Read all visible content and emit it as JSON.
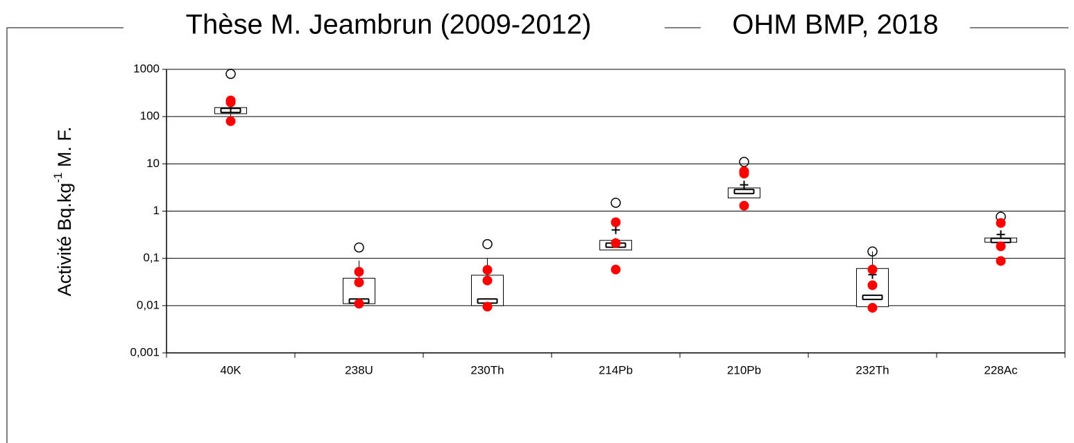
{
  "chart_data": {
    "type": "box",
    "legend": [
      {
        "name": "Thèse M. Jeambrun (2009-2012)",
        "color": "#000000"
      },
      {
        "name": "OHM BMP, 2018",
        "color": "#ff0000"
      }
    ],
    "y_label": [
      "Activité Bq.kg",
      "-1",
      " M. F."
    ],
    "log_y": true,
    "grid": true,
    "ylim": [
      0.001,
      1000
    ],
    "yticks": [
      {
        "value": 0.001,
        "label": "0,001"
      },
      {
        "value": 0.01,
        "label": "0,01"
      },
      {
        "value": 0.1,
        "label": "0,1"
      },
      1,
      10,
      100,
      1000
    ],
    "categories": [
      "40K",
      "238U",
      "230Th",
      "214Pb",
      "210Pb",
      "232Th",
      "228Ac"
    ],
    "boxes": [
      {
        "whisker_low": 100,
        "q1": 115,
        "median": 135,
        "q3": 155,
        "whisker_high": 160,
        "mean": 150,
        "outliers": [
          800
        ]
      },
      {
        "whisker_low": 0.011,
        "q1": 0.011,
        "median": 0.0125,
        "q3": 0.038,
        "whisker_high": 0.09,
        "mean": null,
        "outliers": [
          0.17
        ]
      },
      {
        "whisker_low": 0.01,
        "q1": 0.01,
        "median": 0.0125,
        "q3": 0.044,
        "whisker_high": 0.1,
        "mean": null,
        "outliers": [
          0.2
        ]
      },
      {
        "whisker_low": 0.15,
        "q1": 0.15,
        "median": 0.19,
        "q3": 0.24,
        "whisker_high": 0.27,
        "mean": 0.4,
        "outliers": [
          1.5
        ]
      },
      {
        "whisker_low": 1.9,
        "q1": 1.9,
        "median": 2.6,
        "q3": 3.1,
        "whisker_high": 3.5,
        "mean": 3.6,
        "outliers": [
          11
        ]
      },
      {
        "whisker_low": 0.0095,
        "q1": 0.0095,
        "median": 0.015,
        "q3": 0.061,
        "whisker_high": 0.14,
        "mean": 0.045,
        "outliers": [
          0.14
        ]
      },
      {
        "whisker_low": 0.22,
        "q1": 0.22,
        "median": 0.24,
        "q3": 0.27,
        "whisker_high": 0.3,
        "mean": 0.32,
        "outliers": [
          0.76
        ]
      }
    ],
    "points": [
      [
        220,
        200,
        80
      ],
      [
        0.052,
        0.031,
        0.011
      ],
      [
        0.057,
        0.034,
        0.0095
      ],
      [
        0.58,
        0.21,
        0.058
      ],
      [
        7,
        6.2,
        1.3
      ],
      [
        0.058,
        0.027,
        0.009
      ],
      [
        0.56,
        0.18,
        0.088
      ]
    ]
  }
}
